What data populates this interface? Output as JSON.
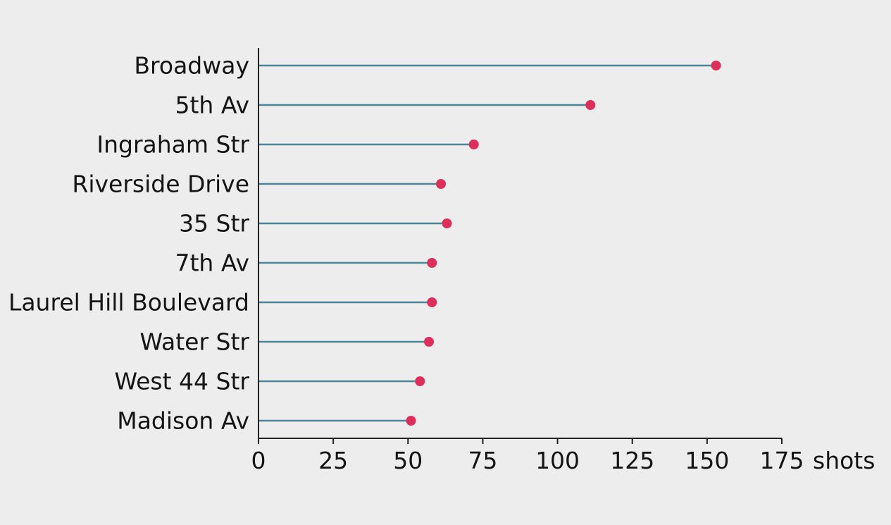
{
  "chart_data": {
    "type": "lollipop",
    "orientation": "horizontal",
    "categories": [
      "Broadway",
      "5th Av",
      "Ingraham Str",
      "Riverside Drive",
      "35 Str",
      "7th Av",
      "Laurel Hill Boulevard",
      "Water Str",
      "West 44 Str",
      "Madison Av"
    ],
    "values": [
      153,
      111,
      72,
      61,
      63,
      58,
      58,
      57,
      54,
      51
    ],
    "xlim": [
      0,
      175
    ],
    "xticks": [
      0,
      25,
      50,
      75,
      100,
      125,
      150,
      175
    ],
    "x_unit": "shots",
    "title": "",
    "xlabel": "",
    "ylabel": "",
    "colors": {
      "stem": "#4d8597",
      "dot": "#dc2f5c",
      "axis": "#222222",
      "background": "#ededed"
    },
    "grid": false
  }
}
